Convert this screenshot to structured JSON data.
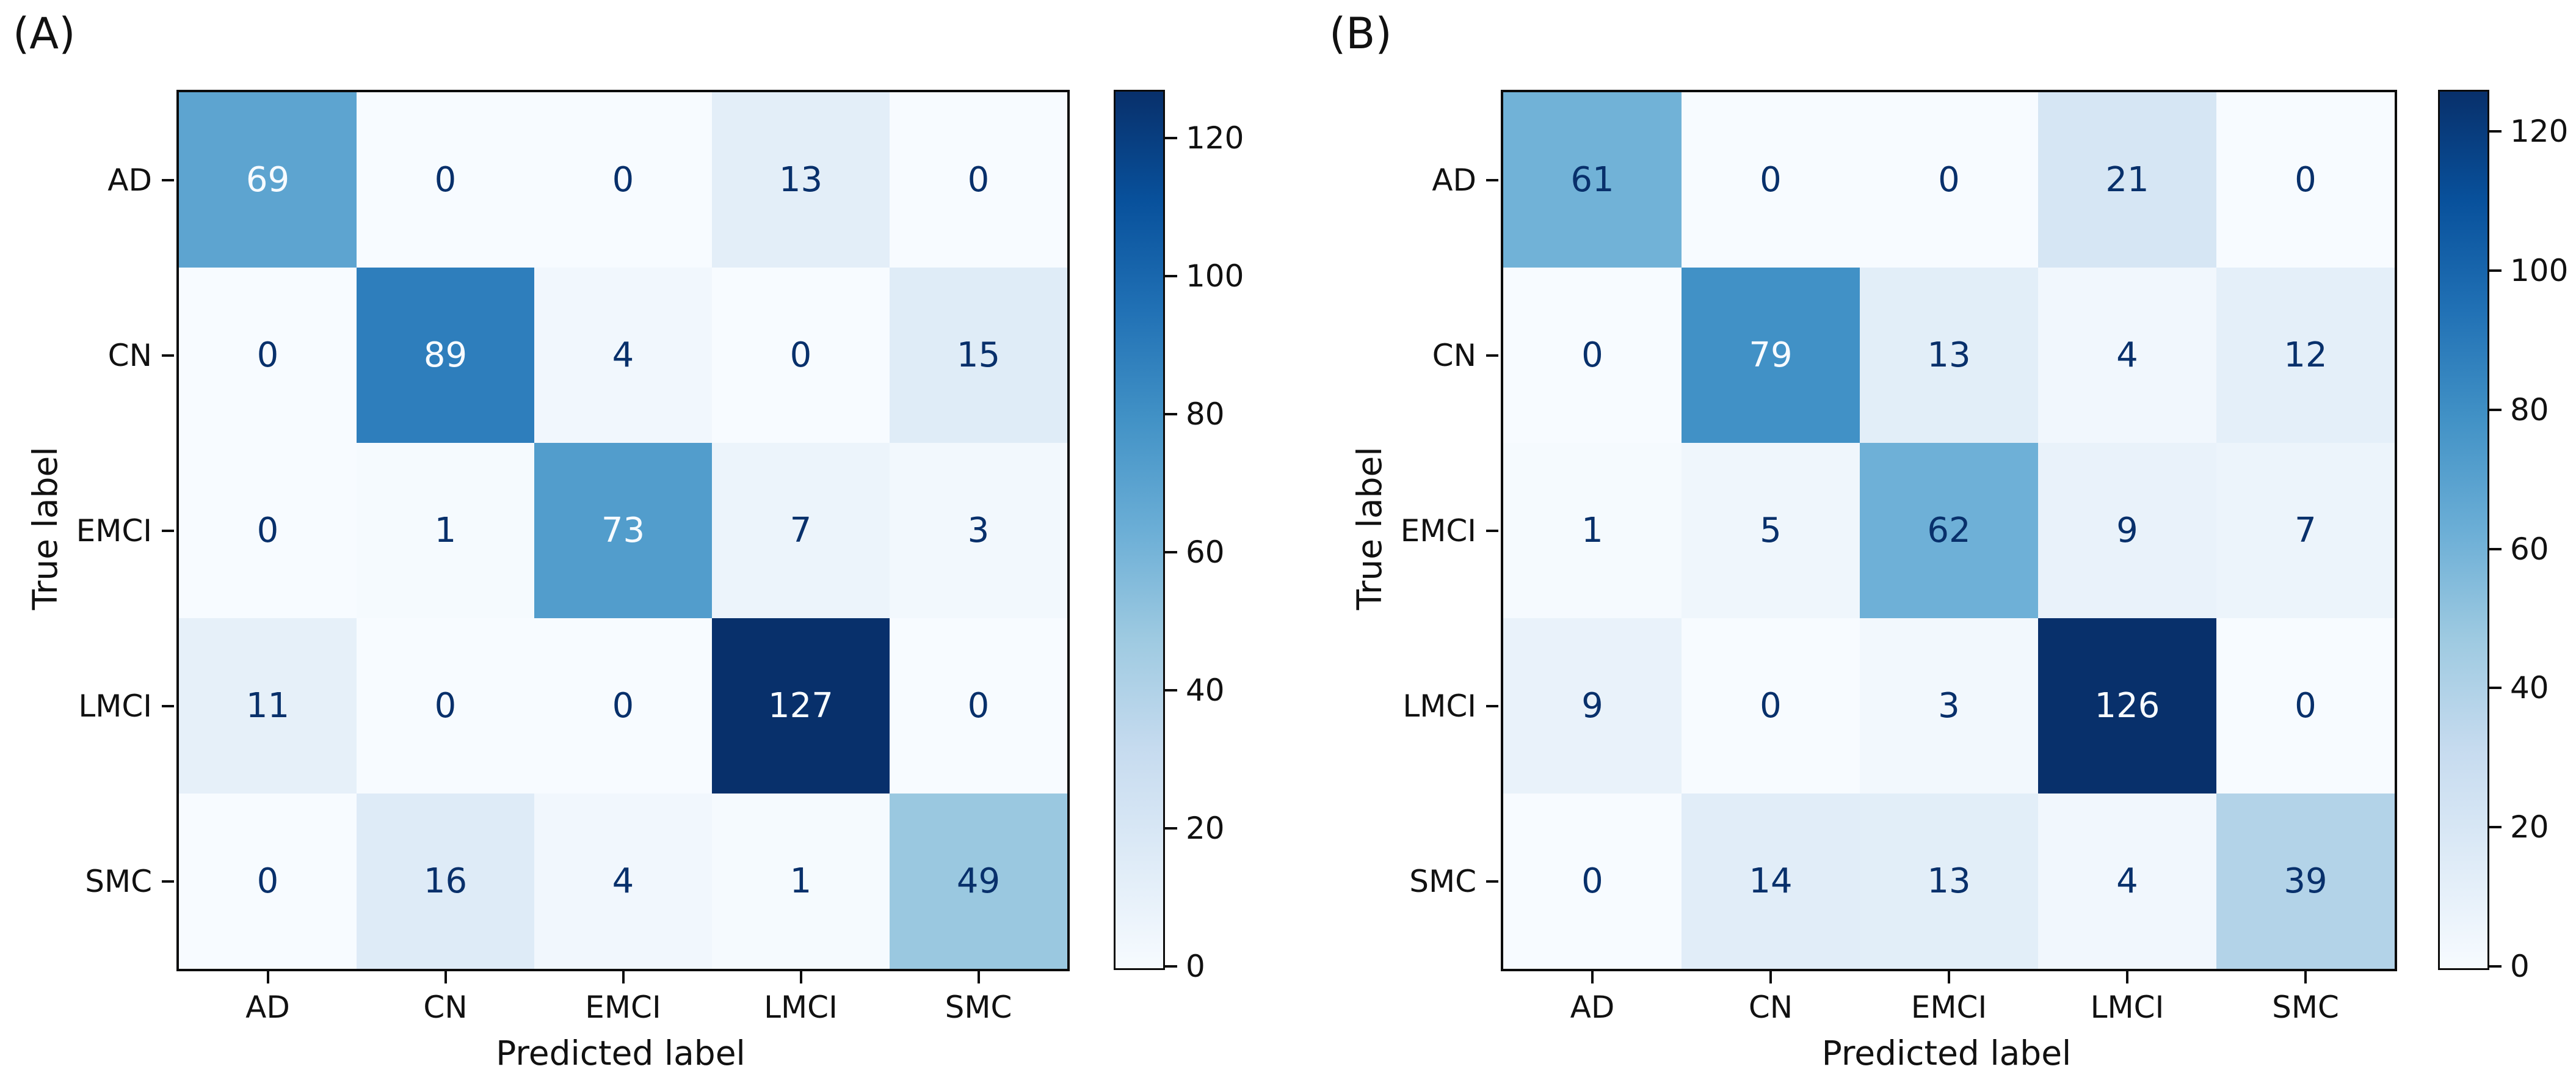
{
  "figure_background": "#ffffff",
  "text_color": "#111111",
  "colormap_name": "Blues",
  "colormap_stops": [
    "#f7fbff",
    "#deebf7",
    "#c6dbef",
    "#9ecae1",
    "#6baed6",
    "#4292c6",
    "#2171b5",
    "#08519c",
    "#08306b"
  ],
  "cell_text_color_dark": "#08306b",
  "cell_text_color_light": "#f7fbff",
  "chart_data": [
    {
      "type": "heatmap",
      "panel_label": "(A)",
      "xlabel": "Predicted label",
      "ylabel": "True label",
      "x_tick_labels": [
        "AD",
        "CN",
        "EMCI",
        "LMCI",
        "SMC"
      ],
      "y_tick_labels": [
        "AD",
        "CN",
        "EMCI",
        "LMCI",
        "SMC"
      ],
      "matrix": [
        [
          69,
          0,
          0,
          13,
          0
        ],
        [
          0,
          89,
          4,
          0,
          15
        ],
        [
          0,
          1,
          73,
          7,
          3
        ],
        [
          11,
          0,
          0,
          127,
          0
        ],
        [
          0,
          16,
          4,
          1,
          49
        ]
      ],
      "vmin": 0,
      "vmax": 127,
      "colorbar_ticks": [
        0,
        20,
        40,
        60,
        80,
        100,
        120
      ],
      "colormap": "Blues",
      "grid": "off",
      "legend": "colorbar-right"
    },
    {
      "type": "heatmap",
      "panel_label": "(B)",
      "xlabel": "Predicted label",
      "ylabel": "True label",
      "x_tick_labels": [
        "AD",
        "CN",
        "EMCI",
        "LMCI",
        "SMC"
      ],
      "y_tick_labels": [
        "AD",
        "CN",
        "EMCI",
        "LMCI",
        "SMC"
      ],
      "matrix": [
        [
          61,
          0,
          0,
          21,
          0
        ],
        [
          0,
          79,
          13,
          4,
          12
        ],
        [
          1,
          5,
          62,
          9,
          7
        ],
        [
          9,
          0,
          3,
          126,
          0
        ],
        [
          0,
          14,
          13,
          4,
          39
        ]
      ],
      "vmin": 0,
      "vmax": 126,
      "colorbar_ticks": [
        0,
        20,
        40,
        60,
        80,
        100,
        120
      ],
      "colormap": "Blues",
      "grid": "off",
      "legend": "colorbar-right"
    }
  ]
}
